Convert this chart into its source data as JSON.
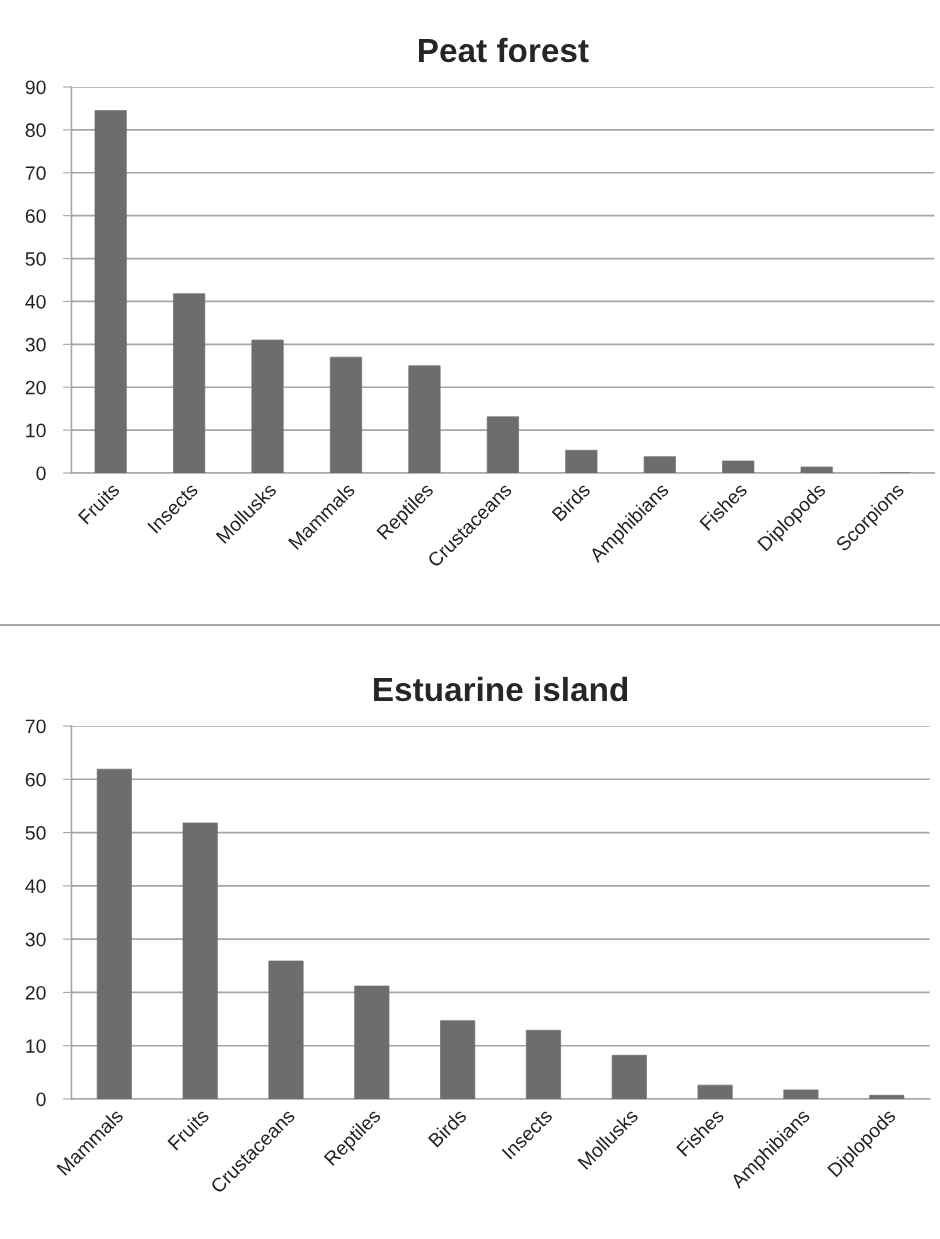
{
  "chart_data": [
    {
      "type": "bar",
      "title": "Peat forest",
      "categories": [
        "Fruits",
        "Insects",
        "Mollusks",
        "Mammals",
        "Reptiles",
        "Crustaceans",
        "Birds",
        "Amphibians",
        "Fishes",
        "Diplopods",
        "Scorpions"
      ],
      "values": [
        84.5,
        41.8,
        31,
        27,
        25,
        13.1,
        5.3,
        3.8,
        2.8,
        1.4,
        0
      ],
      "color": "#6d6d6d",
      "ylim": [
        0,
        90
      ],
      "yticks": [
        0,
        10,
        20,
        30,
        40,
        50,
        60,
        70,
        80,
        90
      ],
      "grid": "y"
    },
    {
      "type": "bar",
      "title": "Estuarine island",
      "categories": [
        "Mammals",
        "Fruits",
        "Crustaceans",
        "Reptiles",
        "Birds",
        "Insects",
        "Mollusks",
        "Fishes",
        "Amphibians",
        "Diplopods"
      ],
      "values": [
        61.9,
        51.8,
        25.9,
        21.2,
        14.7,
        12.9,
        8.2,
        2.6,
        1.7,
        0.7
      ],
      "color": "#6d6d6d",
      "ylim": [
        0,
        70
      ],
      "yticks": [
        0,
        10,
        20,
        30,
        40,
        50,
        60,
        70
      ],
      "grid": "y"
    }
  ]
}
